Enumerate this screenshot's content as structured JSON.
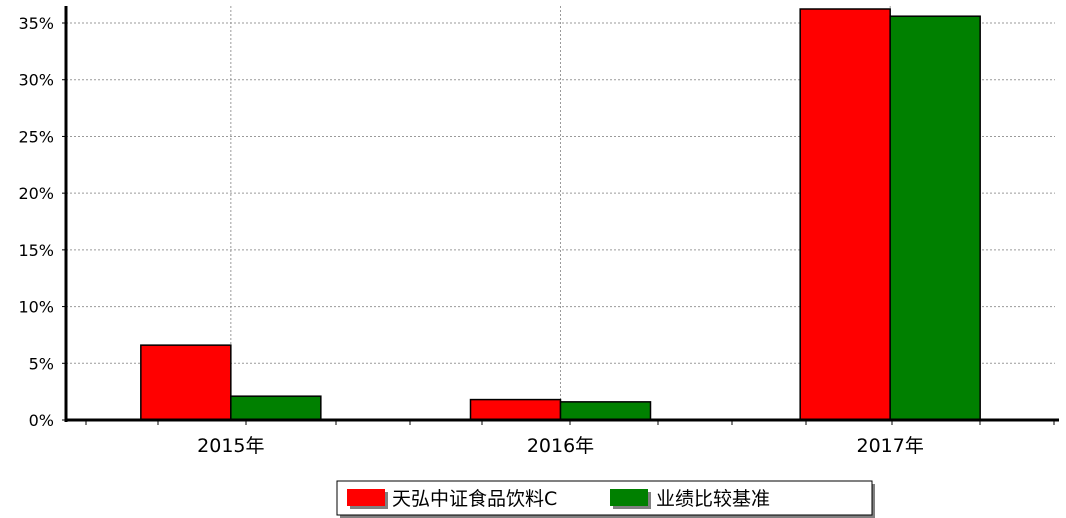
{
  "chart_data": {
    "type": "bar",
    "categories": [
      "2015年",
      "2016年",
      "2017年"
    ],
    "series": [
      {
        "name": "天弘中证食品饮料C",
        "color": "#ff0000",
        "values": [
          6.6,
          1.8,
          37.0
        ]
      },
      {
        "name": "业绩比较基准",
        "color": "#008000",
        "values": [
          2.1,
          1.6,
          35.6
        ]
      }
    ],
    "y_ticks": [
      "0%",
      "5%",
      "10%",
      "15%",
      "20%",
      "25%",
      "30%",
      "35%"
    ],
    "ylim": [
      0,
      36.5
    ],
    "grid": true,
    "legend_position": "bottom"
  }
}
